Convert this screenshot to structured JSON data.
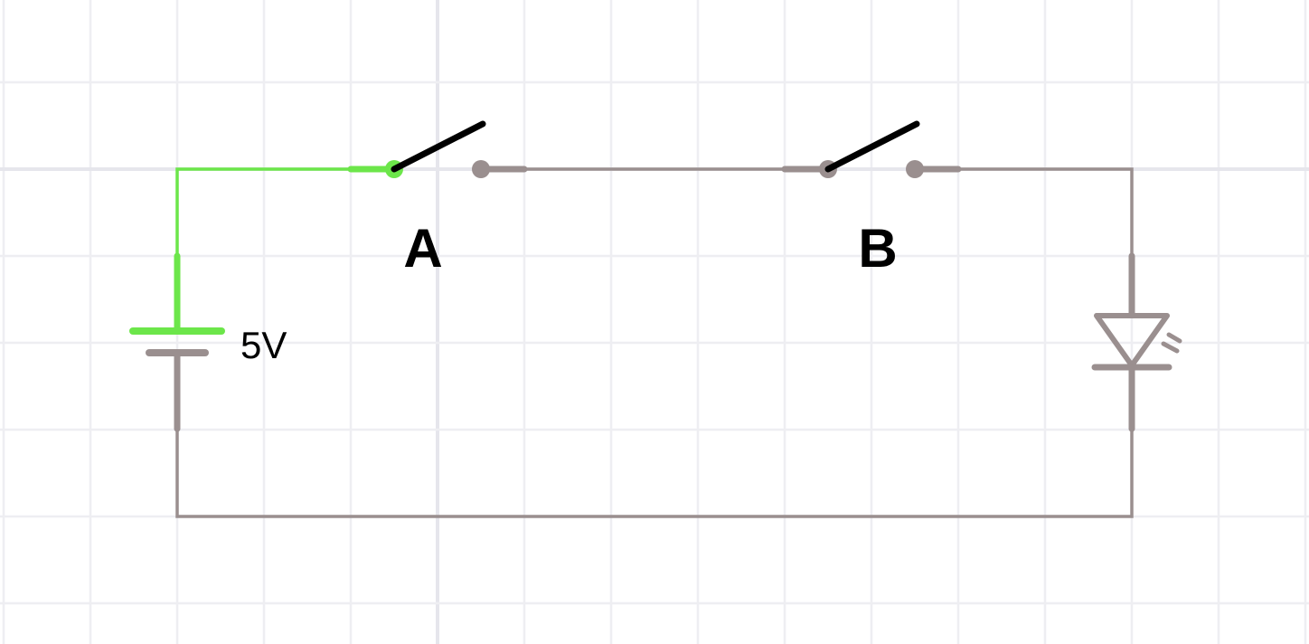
{
  "colors": {
    "grid_minor": "#eeeef2",
    "grid_major": "#e6e6ec",
    "wire_live": "#6ce64a",
    "wire_idle": "#9a8f8f",
    "switch_lever": "#000000",
    "label": "#000000"
  },
  "components": {
    "battery": {
      "voltage_label": "5V"
    },
    "switch_a": {
      "label": "A",
      "state": "open"
    },
    "switch_b": {
      "label": "B",
      "state": "open"
    },
    "led": {
      "state": "off"
    }
  }
}
